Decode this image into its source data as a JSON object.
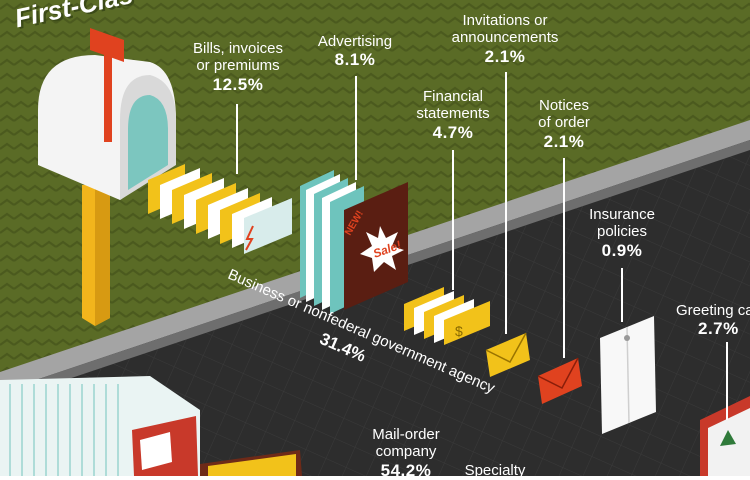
{
  "title": "First-Clas",
  "categories": [
    {
      "key": "bills",
      "label_lines": [
        "Bills, invoices",
        "or premiums"
      ],
      "percent": "12.5%"
    },
    {
      "key": "advertising",
      "label_lines": [
        "Advertising"
      ],
      "percent": "8.1%"
    },
    {
      "key": "invitations",
      "label_lines": [
        "Invitations or",
        "announcements"
      ],
      "percent": "2.1%"
    },
    {
      "key": "financial",
      "label_lines": [
        "Financial",
        "statements"
      ],
      "percent": "4.7%"
    },
    {
      "key": "notices",
      "label_lines": [
        "Notices",
        "of order"
      ],
      "percent": "2.1%"
    },
    {
      "key": "insurance",
      "label_lines": [
        "Insurance",
        "policies"
      ],
      "percent": "0.9%"
    },
    {
      "key": "greeting",
      "label_lines": [
        "Greeting ca"
      ],
      "percent": "2.7%"
    },
    {
      "key": "mailorder",
      "label_lines": [
        "Mail-order",
        "company"
      ],
      "percent": "54.2%"
    },
    {
      "key": "specialty",
      "label_lines": [
        "Specialty"
      ],
      "percent": ""
    }
  ],
  "business": {
    "label": "Business or nonfederal government agency",
    "percent": "31.4%"
  },
  "ad_text": {
    "new": "NEW!",
    "sale": "Sale!"
  },
  "colors": {
    "grass": "#5a6b26",
    "grass_dark": "#4d5c20",
    "road": "#2b2b2b",
    "road_edge": "#8c8c8c",
    "yellow": "#f2c21a",
    "teal": "#6ec4bd",
    "red": "#e03a1e",
    "maroon": "#5a1e12",
    "white": "#ffffff"
  }
}
